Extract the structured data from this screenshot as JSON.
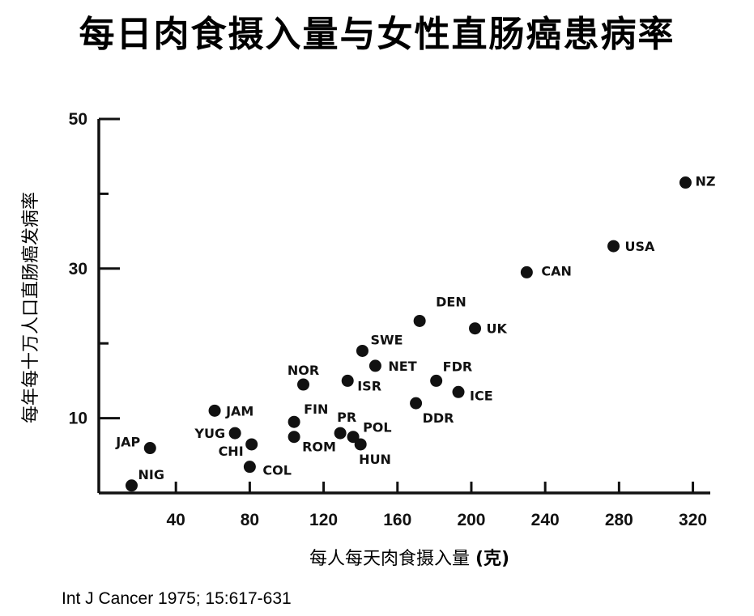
{
  "title": "每日肉食摄入量与女性直肠癌患病率",
  "source": "Int J Cancer 1975; 15:617-631",
  "chart_data": {
    "type": "scatter",
    "title": "每日肉食摄入量与女性直肠癌患病率",
    "xlabel_text": "每人每天肉食摄入量 ",
    "xlabel_unit": "(克)",
    "ylabel": "每年每十万人口直肠癌发病率",
    "xlim": [
      0,
      330
    ],
    "ylim": [
      0,
      50
    ],
    "xticks": [
      40,
      80,
      120,
      160,
      200,
      240,
      280,
      320
    ],
    "yticks": [
      10,
      30,
      50
    ],
    "grid": false,
    "points": [
      {
        "label": "NIG",
        "x": 16,
        "y": 1
      },
      {
        "label": "JAP",
        "x": 26,
        "y": 6
      },
      {
        "label": "JAM",
        "x": 61,
        "y": 11
      },
      {
        "label": "YUG",
        "x": 72,
        "y": 8
      },
      {
        "label": "CHI",
        "x": 81,
        "y": 6.5
      },
      {
        "label": "COL",
        "x": 80,
        "y": 3.5
      },
      {
        "label": "NOR",
        "x": 109,
        "y": 14.5
      },
      {
        "label": "FIN",
        "x": 104,
        "y": 9.5
      },
      {
        "label": "ROM",
        "x": 104,
        "y": 7.5
      },
      {
        "label": "PR",
        "x": 129,
        "y": 8
      },
      {
        "label": "POL",
        "x": 136,
        "y": 7.5
      },
      {
        "label": "HUN",
        "x": 140,
        "y": 6.5
      },
      {
        "label": "ISR",
        "x": 133,
        "y": 15
      },
      {
        "label": "SWE",
        "x": 141,
        "y": 19
      },
      {
        "label": "NET",
        "x": 148,
        "y": 17
      },
      {
        "label": "DEN",
        "x": 172,
        "y": 23
      },
      {
        "label": "DDR",
        "x": 170,
        "y": 12
      },
      {
        "label": "FDR",
        "x": 181,
        "y": 15
      },
      {
        "label": "ICE",
        "x": 193,
        "y": 13.5
      },
      {
        "label": "UK",
        "x": 202,
        "y": 22
      },
      {
        "label": "CAN",
        "x": 230,
        "y": 29.5
      },
      {
        "label": "USA",
        "x": 277,
        "y": 33
      },
      {
        "label": "NZ",
        "x": 316,
        "y": 41.5
      }
    ]
  }
}
